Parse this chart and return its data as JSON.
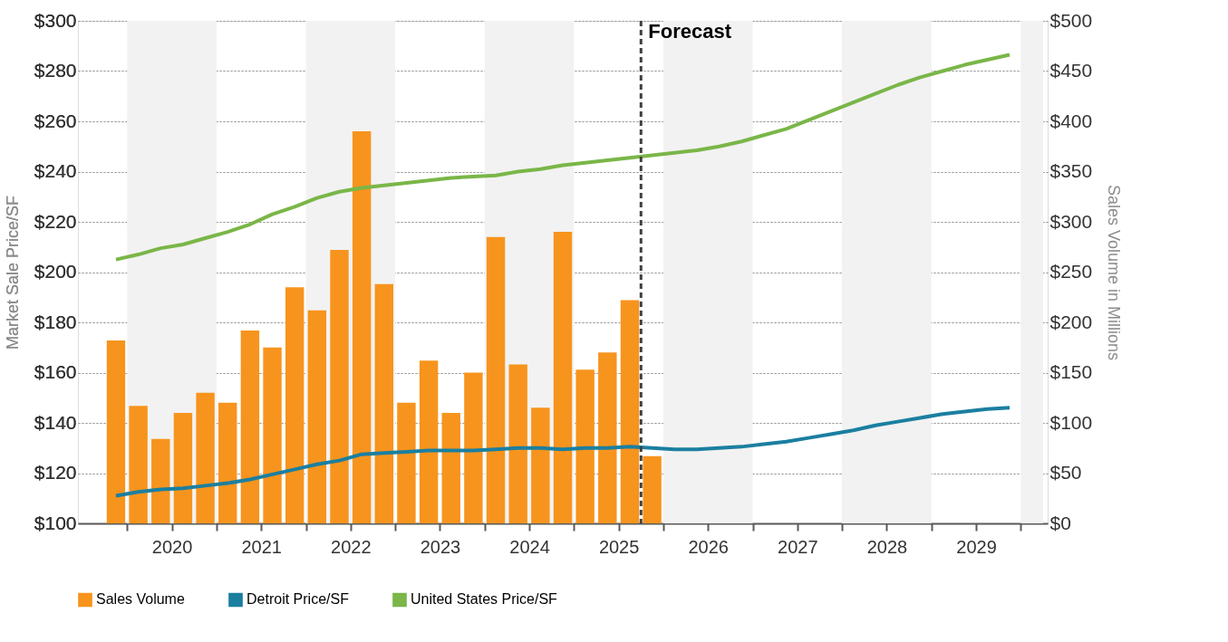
{
  "chart_data": {
    "type": "line",
    "ylabel": "Market Sale Price/SF",
    "y2label": "Sales Volume in Millions",
    "xlim": [
      2019.5,
      2030.25
    ],
    "xticks": [
      {
        "value": 2020,
        "label": null
      },
      {
        "value": 2020.5,
        "label": "2020"
      },
      {
        "value": 2021,
        "label": null
      },
      {
        "value": 2021.5,
        "label": "2021"
      },
      {
        "value": 2022,
        "label": null
      },
      {
        "value": 2022.5,
        "label": "2022"
      },
      {
        "value": 2023,
        "label": null
      },
      {
        "value": 2023.5,
        "label": "2023"
      },
      {
        "value": 2024,
        "label": null
      },
      {
        "value": 2024.5,
        "label": "2024"
      },
      {
        "value": 2025,
        "label": null
      },
      {
        "value": 2025.5,
        "label": "2025"
      },
      {
        "value": 2026,
        "label": null
      },
      {
        "value": 2026.5,
        "label": "2026"
      },
      {
        "value": 2027,
        "label": null
      },
      {
        "value": 2027.5,
        "label": "2027"
      },
      {
        "value": 2028,
        "label": null
      },
      {
        "value": 2028.5,
        "label": "2028"
      },
      {
        "value": 2029,
        "label": null
      },
      {
        "value": 2029.5,
        "label": "2029"
      },
      {
        "value": 2030,
        "label": null
      }
    ],
    "ylim": [
      100,
      300
    ],
    "yticks": [
      {
        "value": 100,
        "label": "$100"
      },
      {
        "value": 120,
        "label": "$120"
      },
      {
        "value": 140,
        "label": "$140"
      },
      {
        "value": 160,
        "label": "$160"
      },
      {
        "value": 180,
        "label": "$180"
      },
      {
        "value": 200,
        "label": "$200"
      },
      {
        "value": 220,
        "label": "$220"
      },
      {
        "value": 240,
        "label": "$240"
      },
      {
        "value": 260,
        "label": "$260"
      },
      {
        "value": 280,
        "label": "$280"
      },
      {
        "value": 300,
        "label": "$300"
      }
    ],
    "y2lim": [
      0,
      500
    ],
    "y2ticks": [
      {
        "value": 0,
        "label": "$0"
      },
      {
        "value": 50,
        "label": "$50"
      },
      {
        "value": 100,
        "label": "$100"
      },
      {
        "value": 150,
        "label": "$150"
      },
      {
        "value": 200,
        "label": "$200"
      },
      {
        "value": 250,
        "label": "$250"
      },
      {
        "value": 300,
        "label": "$300"
      },
      {
        "value": 350,
        "label": "$350"
      },
      {
        "value": 400,
        "label": "$400"
      },
      {
        "value": 450,
        "label": "$450"
      },
      {
        "value": 500,
        "label": "$500"
      }
    ],
    "grid": "y",
    "legend": "bottom",
    "series": [
      {
        "name": "Sales Volume",
        "type": "bar",
        "axis": "y2",
        "color": "#f7941d",
        "x": [
          2019.875,
          2020.125,
          2020.375,
          2020.625,
          2020.875,
          2021.125,
          2021.375,
          2021.625,
          2021.875,
          2022.125,
          2022.375,
          2022.625,
          2022.875,
          2023.125,
          2023.375,
          2023.625,
          2023.875,
          2024.125,
          2024.375,
          2024.625,
          2024.875,
          2025.125,
          2025.375,
          2025.625,
          2025.875
        ],
        "values": [
          182,
          117,
          84,
          110,
          130,
          120,
          192,
          175,
          235,
          212,
          272,
          390,
          238,
          120,
          162,
          110,
          150,
          285,
          158,
          115,
          290,
          153,
          170,
          222,
          67
        ]
      },
      {
        "name": "Detroit Price/SF",
        "color": "#1b7fa0",
        "x": [
          2019.875,
          2020.125,
          2020.375,
          2020.625,
          2020.875,
          2021.125,
          2021.375,
          2021.625,
          2021.875,
          2022.125,
          2022.375,
          2022.625,
          2022.875,
          2023.125,
          2023.375,
          2023.625,
          2023.875,
          2024.125,
          2024.375,
          2024.625,
          2024.875,
          2025.125,
          2025.375,
          2025.625,
          2025.875,
          2026.125,
          2026.375,
          2026.625,
          2026.875,
          2027.125,
          2027.375,
          2027.625,
          2027.875,
          2028.125,
          2028.375,
          2028.625,
          2028.875,
          2029.125,
          2029.375,
          2029.625,
          2029.875
        ],
        "values": [
          111,
          112.5,
          113.5,
          114,
          115,
          116,
          117.5,
          119.5,
          121.5,
          123.5,
          125,
          127.5,
          128,
          128.5,
          129,
          129,
          129,
          129.5,
          130,
          130,
          129.5,
          130,
          130,
          130.5,
          130,
          129.5,
          129.5,
          130,
          130.5,
          131.5,
          132.5,
          134,
          135.5,
          137,
          139,
          140.5,
          142,
          143.5,
          144.5,
          145.5,
          146
        ]
      },
      {
        "name": "United States Price/SF",
        "color": "#7ab648",
        "x": [
          2019.875,
          2020.125,
          2020.375,
          2020.625,
          2020.875,
          2021.125,
          2021.375,
          2021.625,
          2021.875,
          2022.125,
          2022.375,
          2022.625,
          2022.875,
          2023.125,
          2023.375,
          2023.625,
          2023.875,
          2024.125,
          2024.375,
          2024.625,
          2024.875,
          2025.125,
          2025.375,
          2025.625,
          2025.875,
          2026.125,
          2026.375,
          2026.625,
          2026.875,
          2027.125,
          2027.375,
          2027.625,
          2027.875,
          2028.125,
          2028.375,
          2028.625,
          2028.875,
          2029.125,
          2029.375,
          2029.625,
          2029.875
        ],
        "values": [
          205,
          207,
          209.5,
          211,
          213.5,
          216,
          219,
          223,
          226,
          229.5,
          232,
          233.5,
          234.5,
          235.5,
          236.5,
          237.5,
          238,
          238.5,
          240,
          241,
          242.5,
          243.5,
          244.5,
          245.5,
          246.5,
          247.5,
          248.5,
          250,
          252,
          254.5,
          257,
          260.5,
          264,
          267.5,
          271,
          274.5,
          277.5,
          280,
          282.5,
          284.5,
          286.5
        ]
      }
    ],
    "ref_lines": [
      {
        "axis": "x",
        "value": 2025.75,
        "label": "Forecast",
        "color": "#404040",
        "line_style": "dashed"
      }
    ],
    "bands": [
      {
        "axis": "x",
        "from": 2020,
        "to": 2021,
        "color": "#f2f2f2"
      },
      {
        "axis": "x",
        "from": 2022,
        "to": 2023,
        "color": "#f2f2f2"
      },
      {
        "axis": "x",
        "from": 2024,
        "to": 2025,
        "color": "#f2f2f2"
      },
      {
        "axis": "x",
        "from": 2026,
        "to": 2027,
        "color": "#f2f2f2"
      },
      {
        "axis": "x",
        "from": 2028,
        "to": 2029,
        "color": "#f2f2f2"
      },
      {
        "axis": "x",
        "from": 2030,
        "to": 2030.25,
        "color": "#f2f2f2"
      }
    ]
  }
}
